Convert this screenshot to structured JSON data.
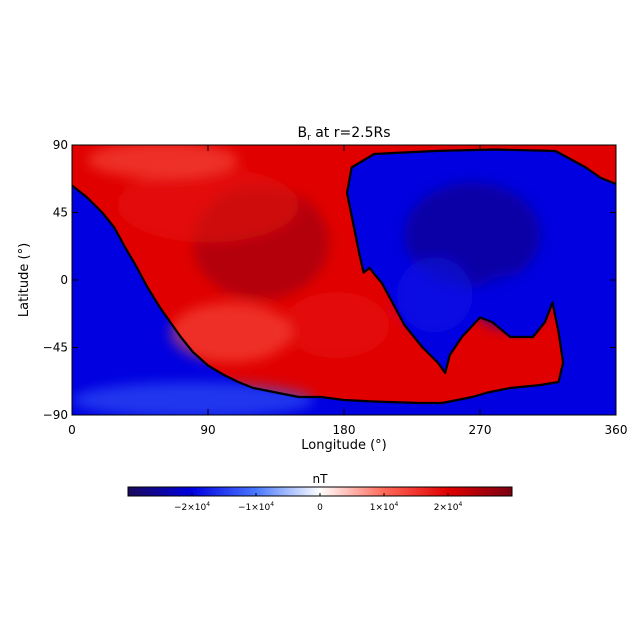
{
  "chart_data": {
    "type": "heatmap",
    "title_main": "B",
    "title_sub": "r",
    "title_rest": " at r=2.5Rs",
    "xlabel": "Longitude (°)",
    "ylabel": "Latitude (°)",
    "xlim": [
      0,
      360
    ],
    "ylim": [
      -90,
      90
    ],
    "x_ticks": [
      0,
      90,
      180,
      270,
      360
    ],
    "y_ticks": [
      -90,
      -45,
      0,
      45,
      90
    ],
    "x_tick_labels": [
      "0",
      "90",
      "180",
      "270",
      "360"
    ],
    "y_tick_labels": [
      "−90",
      "−45",
      "0",
      "45",
      "90"
    ],
    "colorbar": {
      "label": "nT",
      "range": [
        -30000,
        30000
      ],
      "ticks": [
        -20000,
        -10000,
        0,
        10000,
        20000
      ],
      "tick_mantissa": [
        "−2×10",
        "−1×10",
        "0",
        "1×10",
        "2×10"
      ],
      "tick_exponent": [
        "4",
        "4",
        "",
        "4",
        "4"
      ],
      "colors": [
        "#1a0a5a",
        "#0000e0",
        "#4a78ff",
        "#ffffff",
        "#ff6a5a",
        "#e00000",
        "#7a0012"
      ]
    },
    "positive_color": "#e00000",
    "negative_color": "#0000e0",
    "neutral_line": {
      "name": "polarity inversion line",
      "color": "#000000",
      "points": [
        [
          0,
          63
        ],
        [
          10,
          55
        ],
        [
          20,
          45
        ],
        [
          28,
          35
        ],
        [
          35,
          22
        ],
        [
          42,
          10
        ],
        [
          50,
          -5
        ],
        [
          58,
          -18
        ],
        [
          65,
          -28
        ],
        [
          72,
          -38
        ],
        [
          80,
          -48
        ],
        [
          90,
          -57
        ],
        [
          100,
          -63
        ],
        [
          110,
          -68
        ],
        [
          120,
          -72
        ],
        [
          135,
          -75
        ],
        [
          150,
          -78
        ],
        [
          165,
          -78
        ],
        [
          180,
          -80
        ],
        [
          200,
          -81
        ],
        [
          230,
          -82
        ],
        [
          245,
          -82
        ],
        [
          265,
          -78
        ],
        [
          275,
          -75
        ],
        [
          290,
          -72
        ],
        [
          310,
          -70
        ],
        [
          322,
          -68
        ],
        [
          325,
          -55
        ],
        [
          322,
          -35
        ],
        [
          318,
          -15
        ],
        [
          313,
          -28
        ],
        [
          305,
          -38
        ],
        [
          290,
          -38
        ],
        [
          278,
          -28
        ],
        [
          270,
          -25
        ],
        [
          258,
          -38
        ],
        [
          250,
          -50
        ],
        [
          247,
          -62
        ],
        [
          242,
          -55
        ],
        [
          232,
          -45
        ],
        [
          220,
          -30
        ],
        [
          212,
          -15
        ],
        [
          205,
          -2
        ],
        [
          200,
          4
        ],
        [
          197,
          8
        ],
        [
          193,
          5
        ],
        [
          190,
          18
        ],
        [
          186,
          38
        ],
        [
          182,
          58
        ],
        [
          185,
          75
        ],
        [
          200,
          84
        ],
        [
          240,
          86
        ],
        [
          280,
          87
        ],
        [
          320,
          86
        ],
        [
          340,
          75
        ],
        [
          350,
          68
        ],
        [
          360,
          64
        ]
      ]
    },
    "blobs": [
      {
        "x": 125,
        "y": 25,
        "value": 28000,
        "rx": 45,
        "ry": 38
      },
      {
        "x": 90,
        "y": 50,
        "value": 18000,
        "rx": 60,
        "ry": 25
      },
      {
        "x": 175,
        "y": -30,
        "value": 18000,
        "rx": 35,
        "ry": 22
      },
      {
        "x": 105,
        "y": -35,
        "value": 12000,
        "rx": 40,
        "ry": 20
      },
      {
        "x": 60,
        "y": 80,
        "value": 12000,
        "rx": 50,
        "ry": 12
      },
      {
        "x": 265,
        "y": 30,
        "value": -28000,
        "rx": 45,
        "ry": 35
      },
      {
        "x": 290,
        "y": -15,
        "value": -20000,
        "rx": 25,
        "ry": 18
      },
      {
        "x": 240,
        "y": -10,
        "value": -18000,
        "rx": 25,
        "ry": 25
      },
      {
        "x": 5,
        "y": 0,
        "value": -20000,
        "rx": 30,
        "ry": 25
      },
      {
        "x": 355,
        "y": 0,
        "value": -20000,
        "rx": 30,
        "ry": 30
      },
      {
        "x": 80,
        "y": -80,
        "value": -12000,
        "rx": 80,
        "ry": 12
      }
    ]
  }
}
